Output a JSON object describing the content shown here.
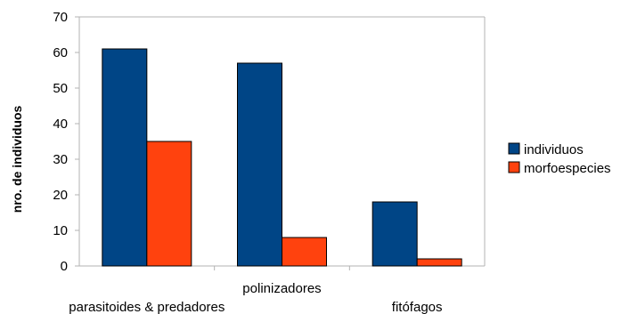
{
  "chart_data": {
    "type": "bar",
    "categories": [
      "parasitoides & predadores",
      "polinizadores",
      "fitófagos"
    ],
    "series": [
      {
        "name": "individuos",
        "values": [
          61,
          57,
          18
        ],
        "color": "#004586"
      },
      {
        "name": "morfoespecies",
        "values": [
          35,
          8,
          2
        ],
        "color": "#ff420e"
      }
    ],
    "title": "",
    "xlabel": "",
    "ylabel": "nro. de individuos",
    "ylim": [
      0,
      70
    ],
    "yticks": [
      0,
      10,
      20,
      30,
      40,
      50,
      60,
      70
    ],
    "grid": false,
    "legend": "right"
  }
}
